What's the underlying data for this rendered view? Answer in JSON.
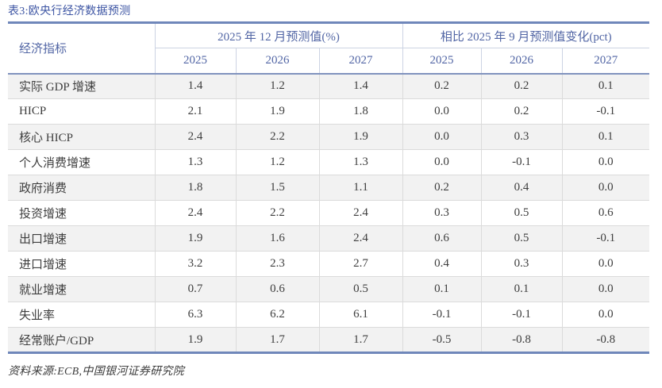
{
  "title": "表3:欧央行经济数据预测",
  "table": {
    "indicator_header": "经济指标",
    "groups": [
      {
        "label": "2025 年 12 月预测值(%)",
        "years": [
          "2025",
          "2026",
          "2027"
        ]
      },
      {
        "label": "相比 2025 年 9 月预测值变化(pct)",
        "years": [
          "2025",
          "2026",
          "2027"
        ]
      }
    ],
    "rows": [
      {
        "indicator": "实际 GDP 增速",
        "forecast": [
          "1.4",
          "1.2",
          "1.4"
        ],
        "change": [
          "0.2",
          "0.2",
          "0.1"
        ]
      },
      {
        "indicator": "HICP",
        "forecast": [
          "2.1",
          "1.9",
          "1.8"
        ],
        "change": [
          "0.0",
          "0.2",
          "-0.1"
        ]
      },
      {
        "indicator": "核心 HICP",
        "forecast": [
          "2.4",
          "2.2",
          "1.9"
        ],
        "change": [
          "0.0",
          "0.3",
          "0.1"
        ]
      },
      {
        "indicator": "个人消费增速",
        "forecast": [
          "1.3",
          "1.2",
          "1.3"
        ],
        "change": [
          "0.0",
          "-0.1",
          "0.0"
        ]
      },
      {
        "indicator": "政府消费",
        "forecast": [
          "1.8",
          "1.5",
          "1.1"
        ],
        "change": [
          "0.2",
          "0.4",
          "0.0"
        ]
      },
      {
        "indicator": "投资增速",
        "forecast": [
          "2.4",
          "2.2",
          "2.4"
        ],
        "change": [
          "0.3",
          "0.5",
          "0.6"
        ]
      },
      {
        "indicator": "出口增速",
        "forecast": [
          "1.9",
          "1.6",
          "2.4"
        ],
        "change": [
          "0.6",
          "0.5",
          "-0.1"
        ]
      },
      {
        "indicator": "进口增速",
        "forecast": [
          "3.2",
          "2.3",
          "2.7"
        ],
        "change": [
          "0.4",
          "0.3",
          "0.0"
        ]
      },
      {
        "indicator": "就业增速",
        "forecast": [
          "0.7",
          "0.6",
          "0.5"
        ],
        "change": [
          "0.1",
          "0.1",
          "0.0"
        ]
      },
      {
        "indicator": "失业率",
        "forecast": [
          "6.3",
          "6.2",
          "6.1"
        ],
        "change": [
          "-0.1",
          "-0.1",
          "0.0"
        ]
      },
      {
        "indicator": "经常账户/GDP",
        "forecast": [
          "1.9",
          "1.7",
          "1.7"
        ],
        "change": [
          "-0.5",
          "-0.8",
          "-0.8"
        ]
      }
    ]
  },
  "source": "资料来源:ECB,中国银河证券研究院",
  "colors": {
    "title_blue": "#3c54a3",
    "header_text_blue": "#5266a5",
    "thick_rule_blue": "#6f87ba",
    "header_divider_blue": "#8093be",
    "light_header_border": "#ccd3e3",
    "row_border_gray": "#dbdbdb",
    "zebra_gray": "#f2f2f2",
    "body_text": "#3e3e3e"
  }
}
